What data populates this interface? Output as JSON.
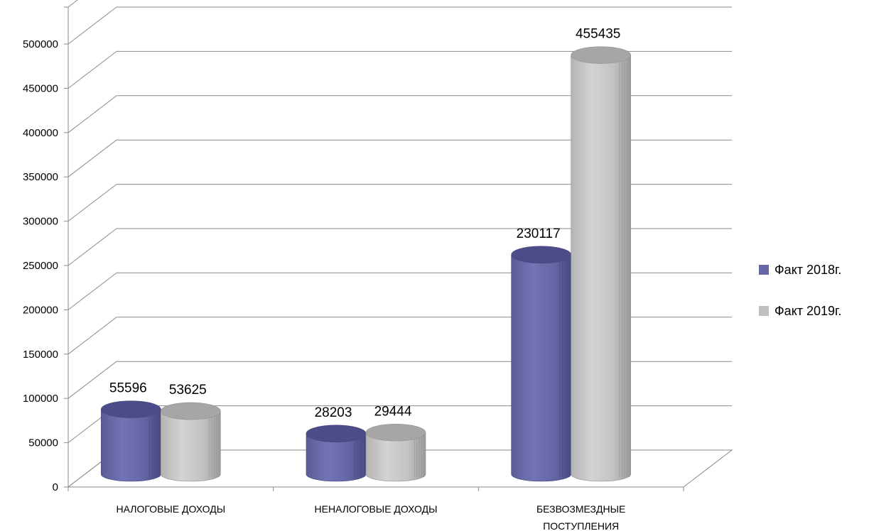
{
  "chart_data": {
    "type": "bar",
    "categories": [
      "НАЛОГОВЫЕ  ДОХОДЫ",
      "НЕНАЛОГОВЫЕ ДОХОДЫ",
      "БЕЗВОЗМЕЗДНЫЕ ПОСТУПЛЕНИЯ"
    ],
    "series": [
      {
        "name": "Факт 2018г.",
        "values": [
          55596,
          28203,
          230117
        ],
        "color": "#6667a4"
      },
      {
        "name": "Факт 2019г.",
        "values": [
          53625,
          29444,
          455435
        ],
        "color": "#c0c0c0"
      }
    ],
    "yticks": [
      0,
      50000,
      100000,
      150000,
      200000,
      250000,
      300000,
      350000,
      400000,
      450000,
      500000
    ],
    "ylim": [
      0,
      500000
    ],
    "grid": true,
    "legend_position": "right",
    "style": "3d-cylinder"
  }
}
